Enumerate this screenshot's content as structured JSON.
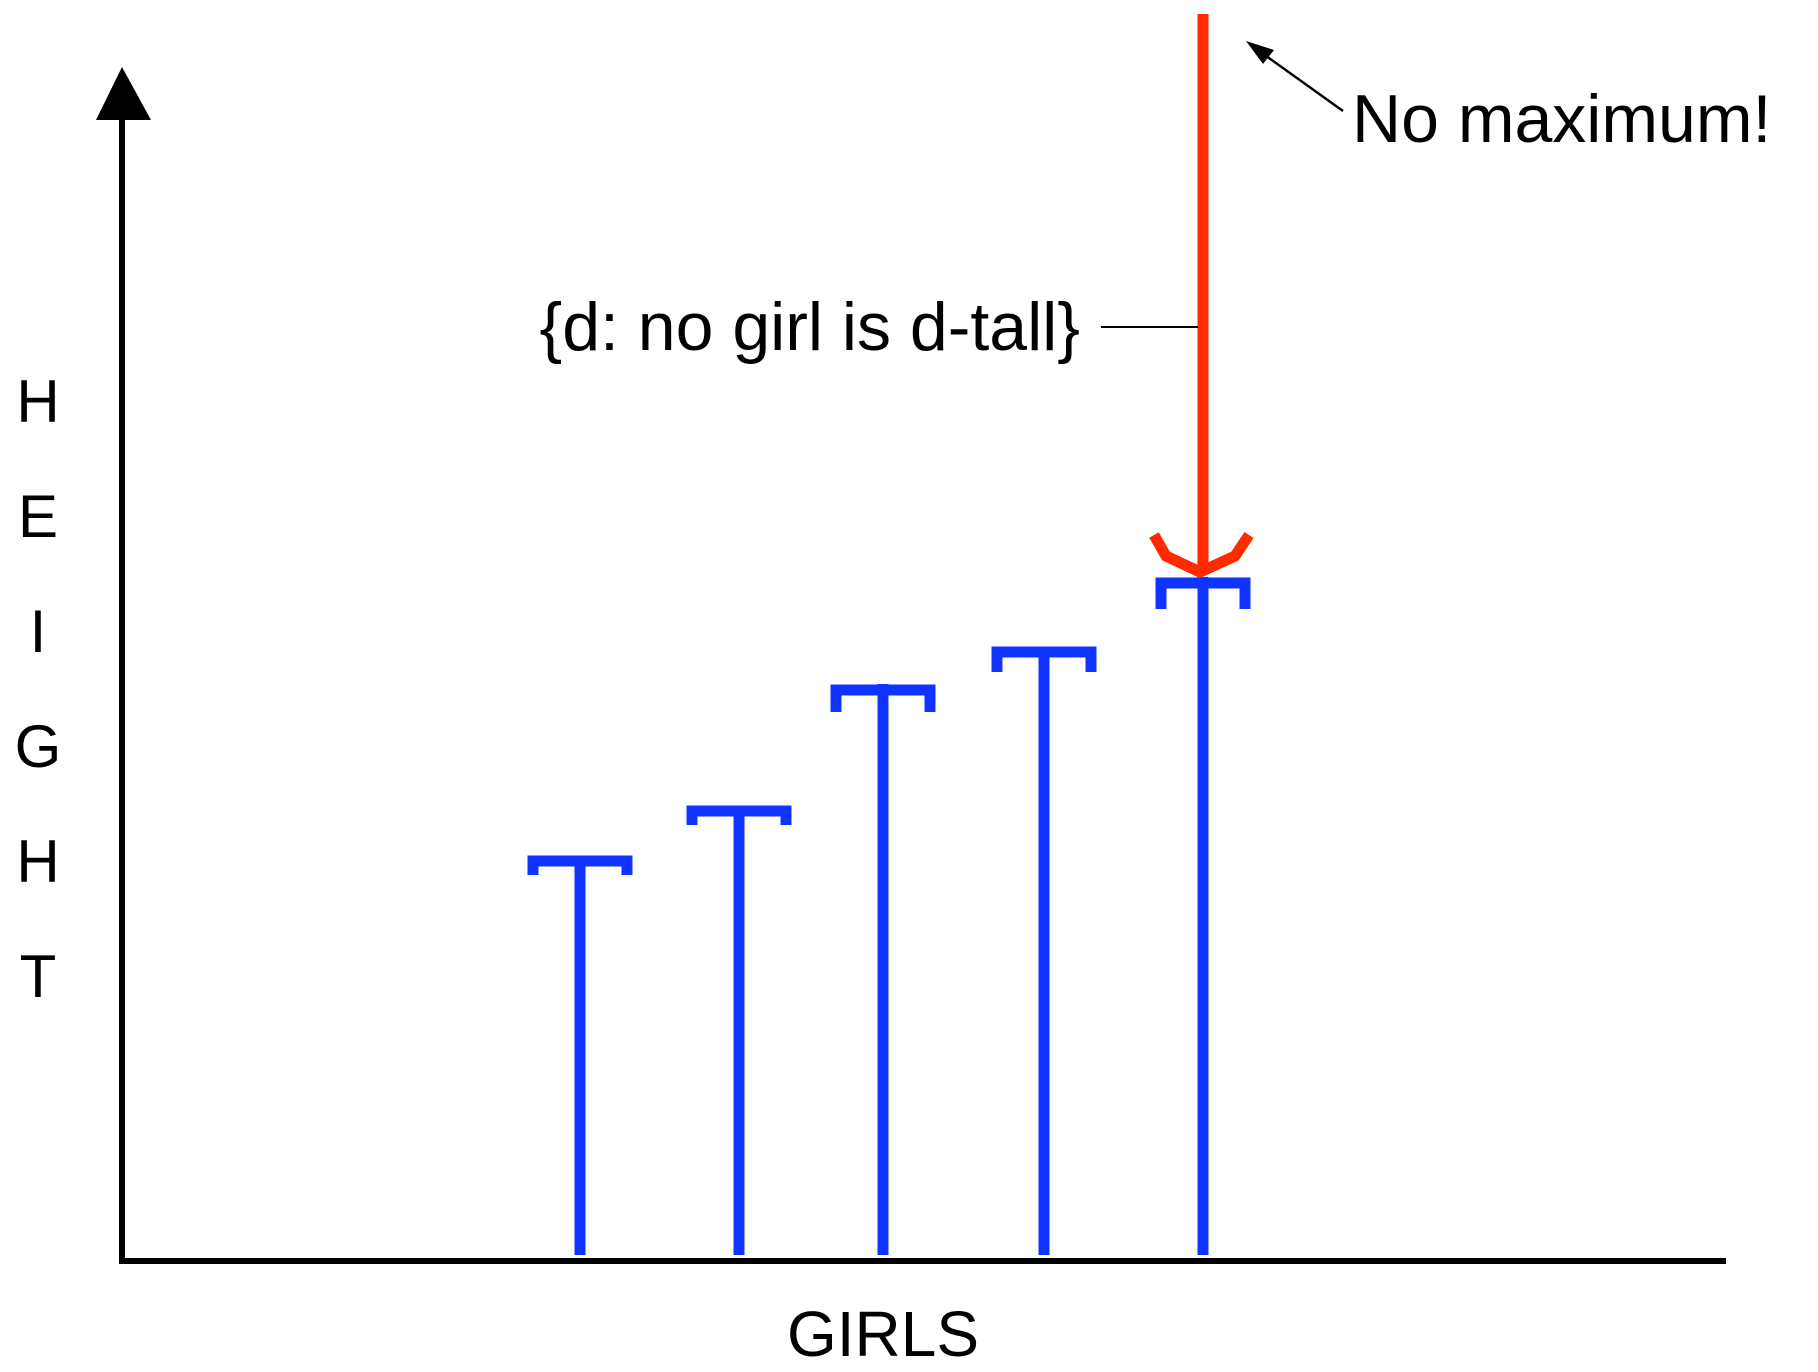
{
  "y_axis_label": [
    "H",
    "E",
    "I",
    "G",
    "H",
    "T"
  ],
  "x_axis_label": "GIRLS",
  "annotations": {
    "set_label": "{d: no girl is d-tall}",
    "no_maximum": "No maximum!"
  }
}
